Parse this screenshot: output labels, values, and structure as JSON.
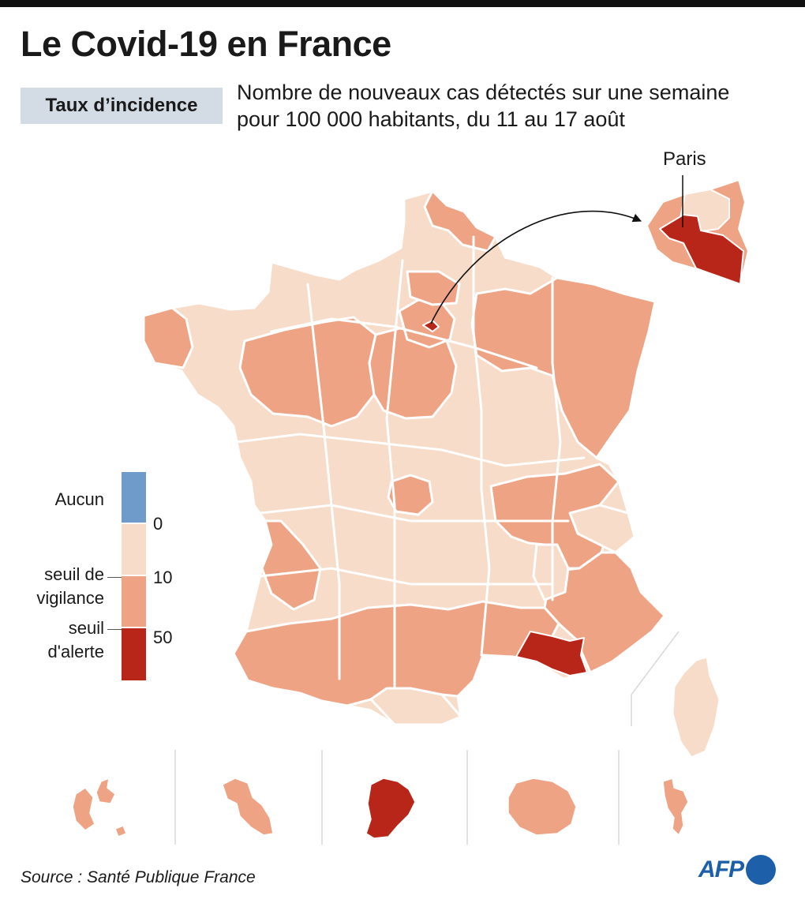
{
  "header": {
    "title": "Le Covid-19 en France",
    "badge": "Taux d’incidence",
    "subtitle_line1": "Nombre de nouveaux cas détectés sur une semaine",
    "subtitle_line2": "pour 100 000 habitants, du 11 au 17 août"
  },
  "legend": {
    "categories": [
      {
        "label": "Aucun",
        "color": "#6f9bcb"
      },
      {
        "label": "",
        "color": "#f6dcc9"
      },
      {
        "label": "seuil de vigilance",
        "color": "#eea385"
      },
      {
        "label": "seuil d'alerte",
        "color": "#b82619"
      }
    ],
    "label_aucun": "Aucun",
    "label_vigilance_1": "seuil de",
    "label_vigilance_2": "vigilance",
    "label_alerte_1": "seuil",
    "label_alerte_2": "d'alerte",
    "ticks": [
      "0",
      "10",
      "50"
    ]
  },
  "map": {
    "inset_label": "Paris",
    "colors": {
      "low": "#f6dcc9",
      "vigilance": "#eea385",
      "alerte": "#b82619",
      "none": "#6f9bcb",
      "border": "#ffffff",
      "separator": "#d9d9d9"
    },
    "overseas": [
      {
        "name": "Guadeloupe",
        "level": "vigilance"
      },
      {
        "name": "Martinique",
        "level": "vigilance"
      },
      {
        "name": "Guyane",
        "level": "alerte"
      },
      {
        "name": "La Réunion",
        "level": "vigilance"
      },
      {
        "name": "Mayotte",
        "level": "vigilance"
      }
    ]
  },
  "footer": {
    "source": "Source : Santé Publique France",
    "logo": "AFP"
  }
}
